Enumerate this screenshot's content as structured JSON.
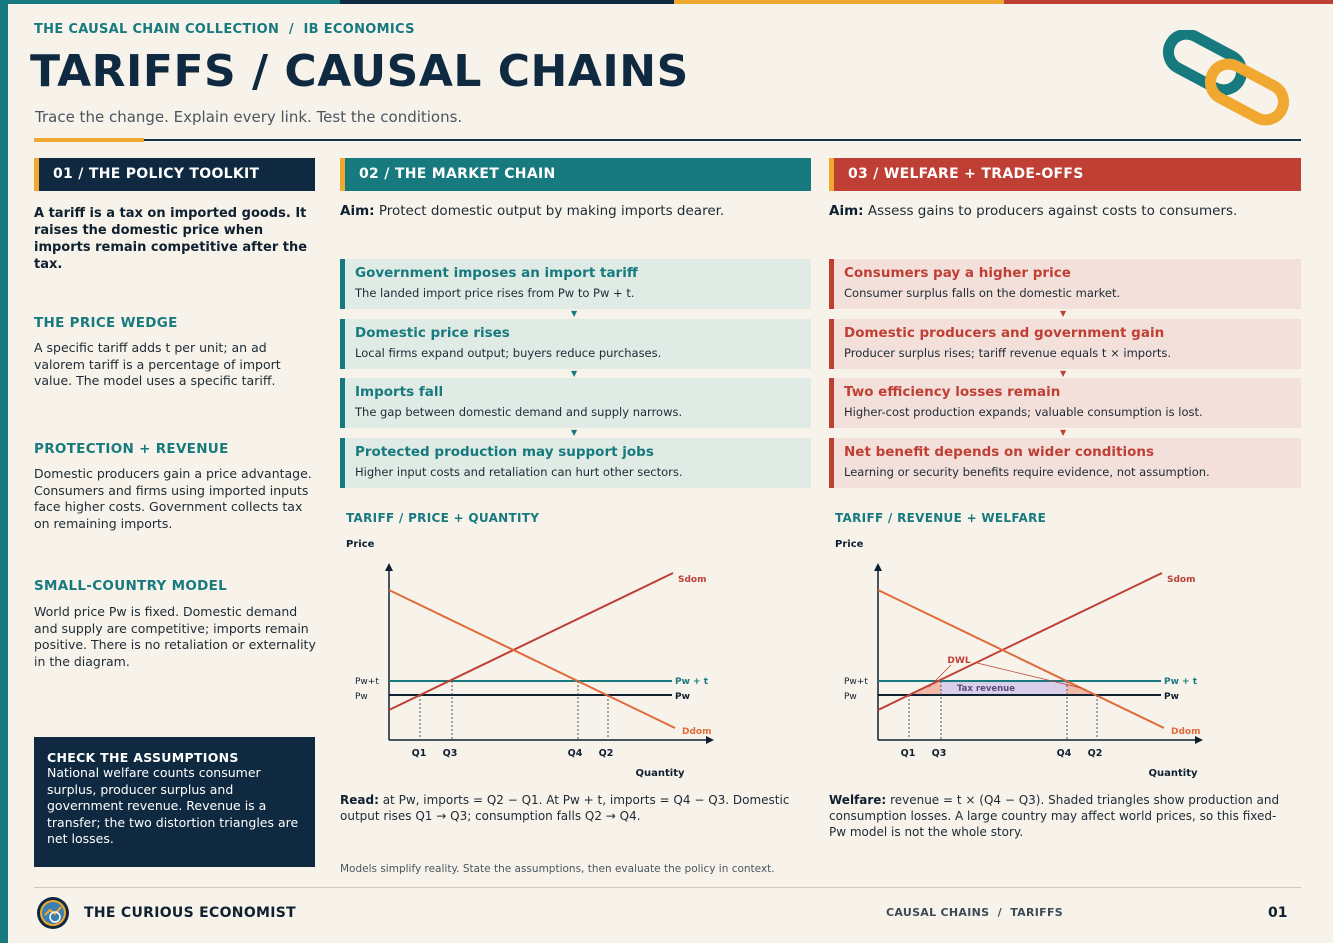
{
  "colors": {
    "teal": "#177a7e",
    "navy": "#0f2a40",
    "red": "#bf3f35",
    "gold": "#f0a830",
    "cream": "#f7f3ea"
  },
  "header": {
    "kicker": "THE CAUSAL CHAIN COLLECTION  /  IB ECONOMICS",
    "title": "TARIFFS / CAUSAL CHAINS",
    "subtitle": "Trace the change. Explain every link. Test the conditions.",
    "logo_icon": "chain-link-icon"
  },
  "col1": {
    "heading": "01 / THE POLICY TOOLKIT",
    "lead": "A tariff is a tax on imported goods. It raises the domestic price when imports remain competitive after the tax.",
    "sections": [
      {
        "title": "THE PRICE WEDGE",
        "body": "A specific tariff adds t per unit; an ad valorem tariff is a percentage of import value. The model uses a specific tariff."
      },
      {
        "title": "PROTECTION + REVENUE",
        "body": "Domestic producers gain a price advantage. Consumers and firms using imported inputs face higher costs. Government collects tax on remaining imports."
      },
      {
        "title": "SMALL-COUNTRY MODEL",
        "body": "World price Pw is fixed. Domestic demand and supply are competitive; imports remain positive. There is no retaliation or externality in the diagram."
      }
    ],
    "check": {
      "title": "CHECK THE ASSUMPTIONS",
      "body": "National welfare counts consumer surplus, producer surplus and government revenue. Revenue is a transfer; the two distortion triangles are net losses."
    }
  },
  "col2": {
    "heading": "02 / THE MARKET CHAIN",
    "aim_label": "Aim:",
    "aim": "Protect domestic output by making imports dearer.",
    "chain": [
      {
        "title": "Government imposes an import tariff",
        "desc": "The landed import price rises from Pw to Pw + t."
      },
      {
        "title": "Domestic price rises",
        "desc": "Local firms expand output; buyers reduce purchases."
      },
      {
        "title": "Imports fall",
        "desc": "The gap between domestic demand and supply narrows."
      },
      {
        "title": "Protected production may support jobs",
        "desc": "Higher input costs and retaliation can hurt other sectors."
      }
    ],
    "graph_title": "TARIFF / PRICE + QUANTITY",
    "read_label": "Read:",
    "read": "at Pw, imports = Q2 − Q1. At Pw + t, imports = Q4 − Q3. Domestic output rises Q1 → Q3; consumption falls Q2 → Q4."
  },
  "col3": {
    "heading": "03 / WELFARE + TRADE-OFFS",
    "aim_label": "Aim:",
    "aim": "Assess gains to producers against costs to consumers.",
    "chain": [
      {
        "title": "Consumers pay a higher price",
        "desc": "Consumer surplus falls on the domestic market."
      },
      {
        "title": "Domestic producers and government gain",
        "desc": "Producer surplus rises; tariff revenue equals t × imports."
      },
      {
        "title": "Two efficiency losses remain",
        "desc": "Higher-cost production expands; valuable consumption is lost."
      },
      {
        "title": "Net benefit depends on wider conditions",
        "desc": "Learning or security benefits require evidence, not assumption."
      }
    ],
    "graph_title": "TARIFF / REVENUE + WELFARE",
    "read_label": "Welfare:",
    "read": "revenue = t × (Q4 − Q3). Shaded triangles show production and consumption losses. A large country may affect world prices, so this fixed-Pw model is not the whole story."
  },
  "graph_labels": {
    "y_axis": "Price",
    "x_axis": "Quantity",
    "pwt_left": "Pw+t",
    "pw_left": "Pw",
    "pwt_right": "Pw + t",
    "pw_right": "Pw",
    "supply": "Sdom",
    "demand": "Ddom",
    "q1": "Q1",
    "q3": "Q3",
    "q4": "Q4",
    "q2": "Q2",
    "dwl": "DWL",
    "tax_revenue": "Tax revenue"
  },
  "footer": {
    "note": "Models simplify reality. State the assumptions, then evaluate the policy in context.",
    "brand": "THE CURIOUS ECONOMIST",
    "center": "CAUSAL CHAINS  /  TARIFFS",
    "page": "01"
  }
}
